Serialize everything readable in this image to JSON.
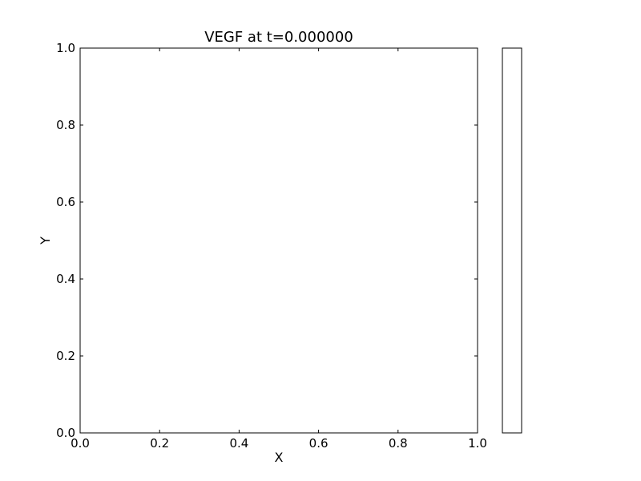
{
  "chart_data": {
    "type": "heatmap",
    "title": "VEGF at t=0.000000",
    "xlabel": "X",
    "ylabel": "Y",
    "xlim": [
      0.0,
      1.0
    ],
    "ylim": [
      0.0,
      1.0
    ],
    "x_ticks": [
      "0.0",
      "0.2",
      "0.4",
      "0.6",
      "0.8",
      "1.0"
    ],
    "y_ticks": [
      "0.0",
      "0.2",
      "0.4",
      "0.6",
      "0.8",
      "1.0"
    ],
    "grid": false,
    "colorbar": true,
    "colorbar_ticks": [],
    "values": [],
    "colors": {
      "background": "#ffffff",
      "frame": "#000000"
    }
  }
}
